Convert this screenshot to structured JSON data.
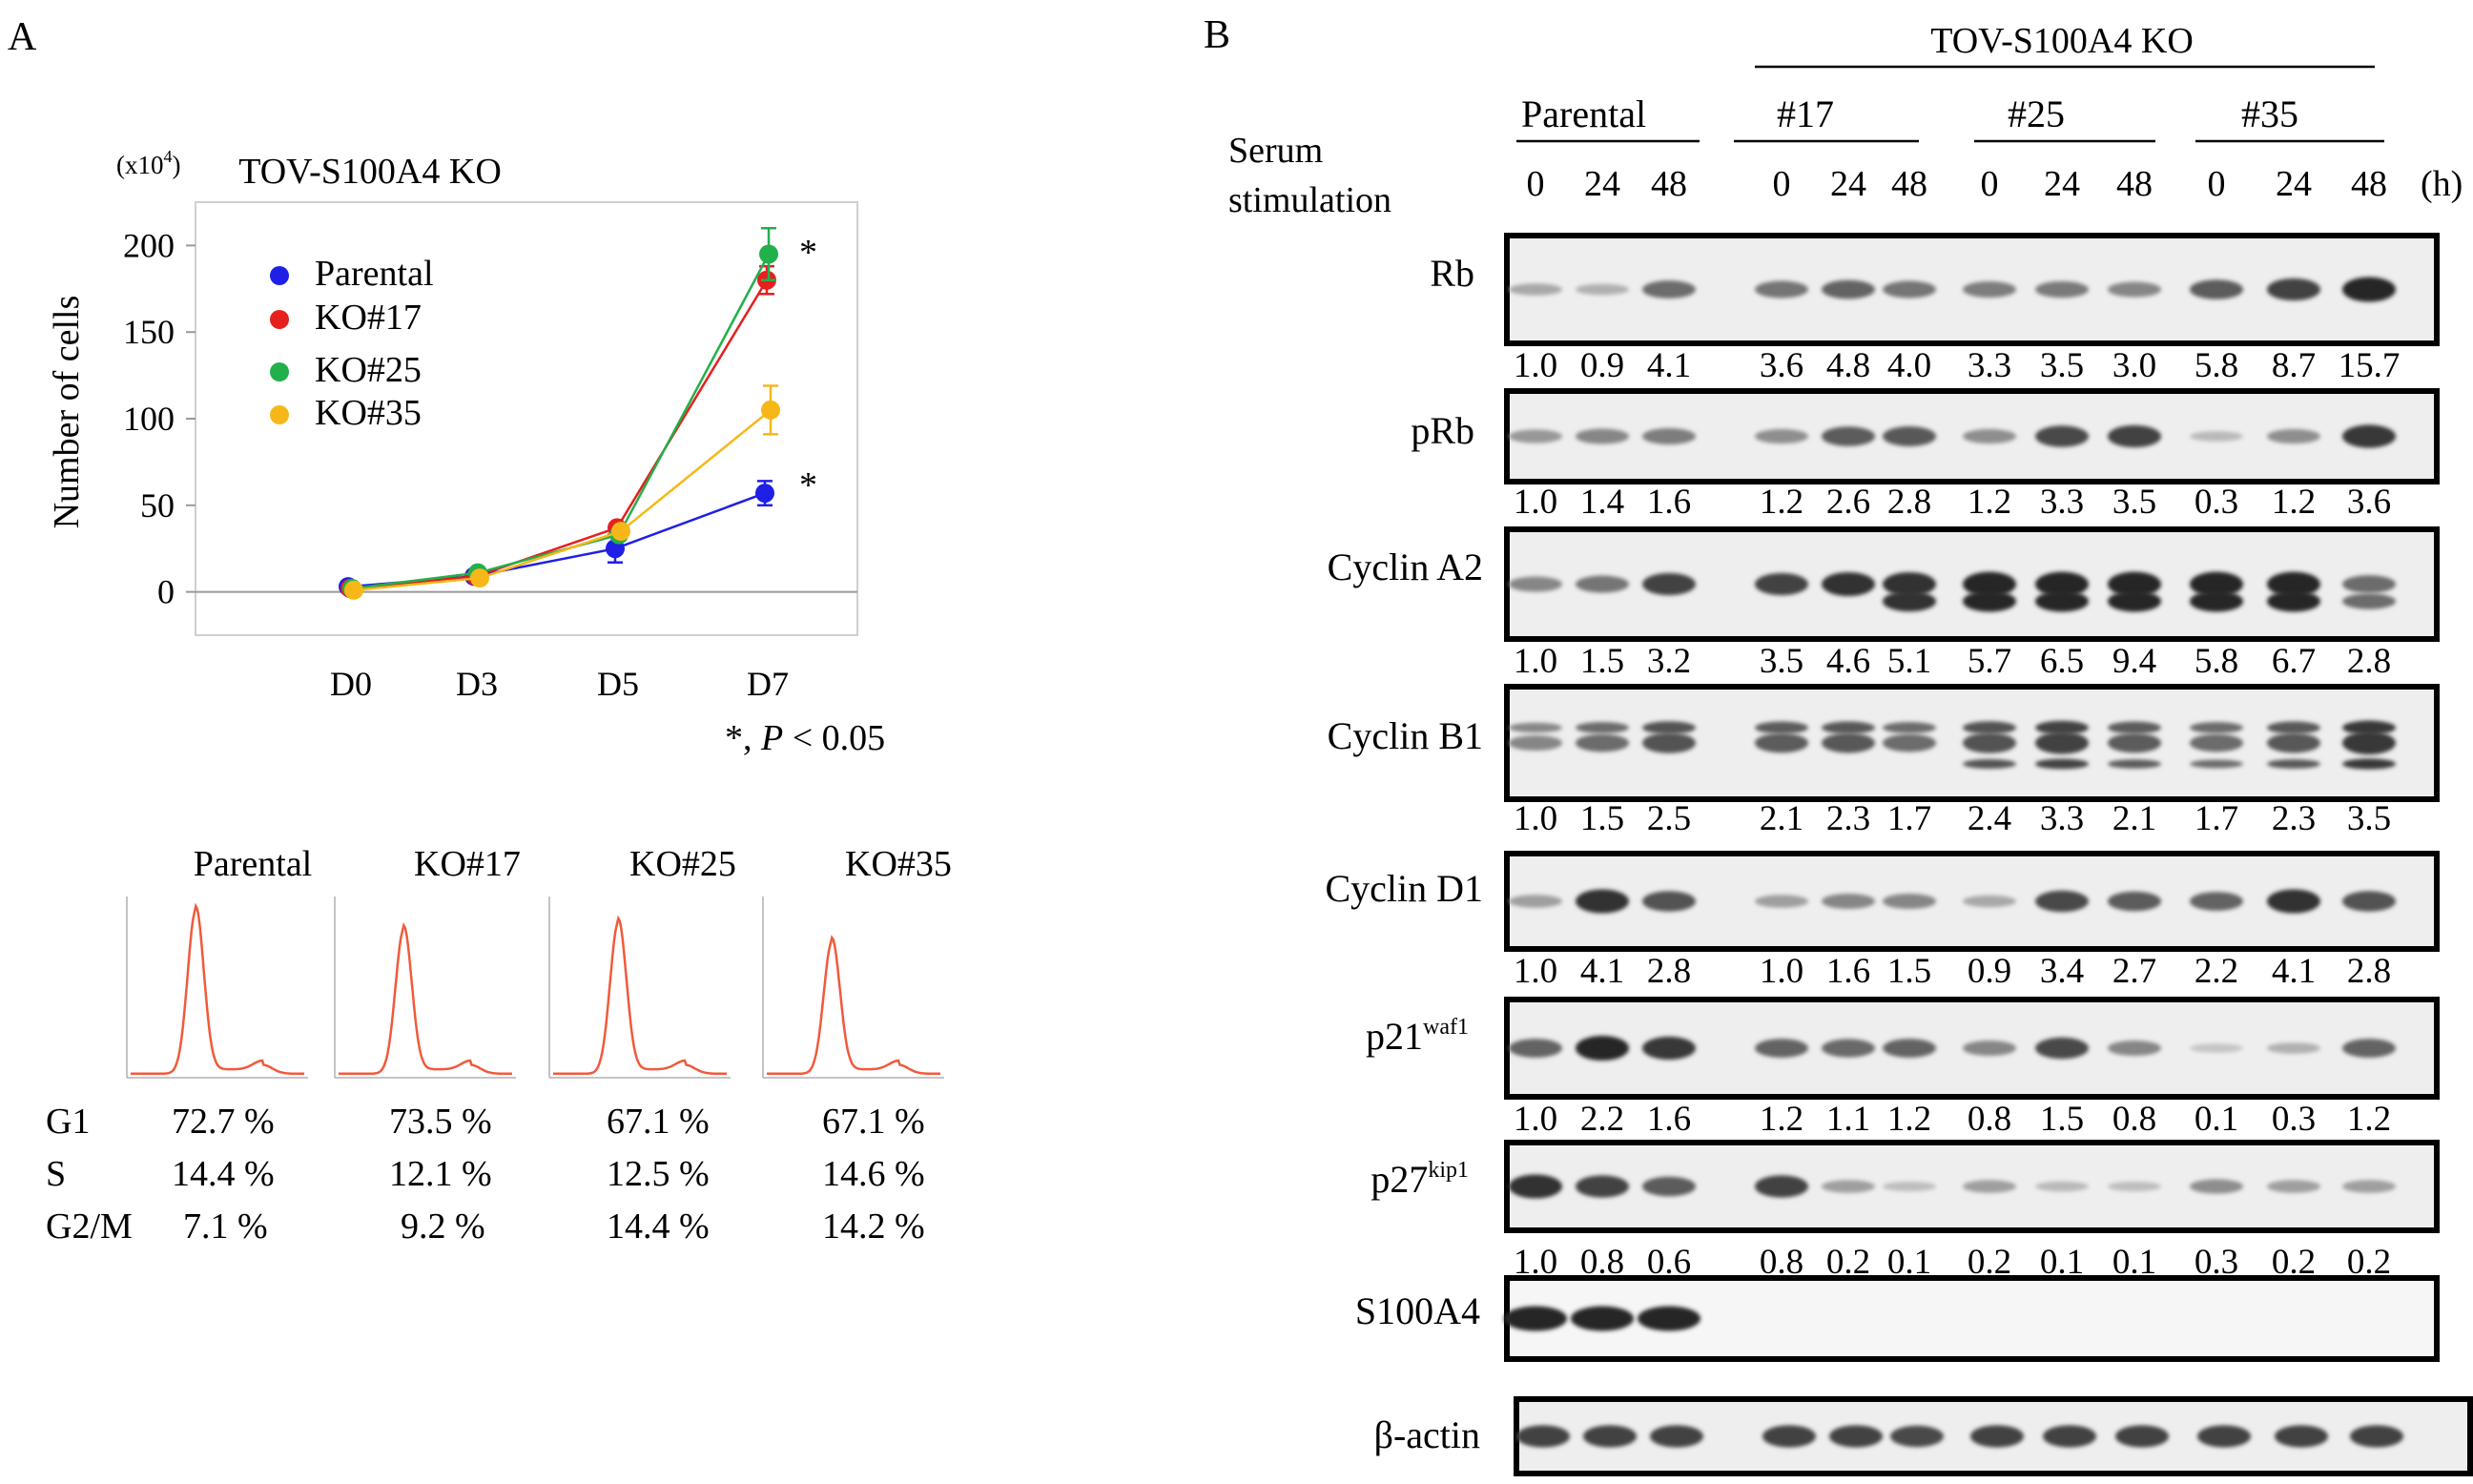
{
  "panel_a": {
    "label": "A",
    "chart_data": {
      "type": "line",
      "title": "TOV-S100A4 KO",
      "scale_label": "(x10",
      "scale_exp": "4",
      "scale_close": ")",
      "ylabel": "Number of cells",
      "xlabel": "",
      "categories": [
        "D0",
        "D3",
        "D5",
        "D7"
      ],
      "x": [
        0,
        3,
        5,
        7
      ],
      "ylim": [
        -25,
        225
      ],
      "yticks": [
        0,
        50,
        100,
        150,
        200
      ],
      "grid": false,
      "legend_position": "top-left",
      "series": [
        {
          "name": "Parental",
          "color": "#1f1fe6",
          "values": [
            3,
            9,
            25,
            57
          ],
          "errors": [
            0,
            0,
            8,
            7
          ]
        },
        {
          "name": "KO#17",
          "color": "#e61f1f",
          "values": [
            2,
            9,
            37,
            180
          ],
          "errors": [
            0,
            0,
            0,
            8
          ]
        },
        {
          "name": "KO#25",
          "color": "#22b04a",
          "values": [
            2,
            11,
            33,
            195
          ],
          "errors": [
            0,
            0,
            0,
            15
          ]
        },
        {
          "name": "KO#35",
          "color": "#f7b718",
          "values": [
            1,
            8,
            35,
            105
          ],
          "errors": [
            0,
            0,
            0,
            14
          ]
        }
      ],
      "significance": [
        {
          "x": 7,
          "y": 190,
          "label": "*"
        },
        {
          "x": 7,
          "y": 57,
          "label": "*"
        }
      ],
      "note_prefix": "*, ",
      "note_italic": "P",
      "note_suffix": " < 0.05"
    },
    "cell_cycle": {
      "curve_color": "#f05a3c",
      "phase_labels": [
        "G1",
        "S",
        "G2/M"
      ],
      "samples": [
        {
          "name": "Parental",
          "G1": "72.7 %",
          "S": "14.4 %",
          "G2M": "7.1 %",
          "peak": 0.93
        },
        {
          "name": "KO#17",
          "G1": "73.5 %",
          "S": "12.1 %",
          "G2M": "9.2 %",
          "peak": 0.82
        },
        {
          "name": "KO#25",
          "G1": "67.1 %",
          "S": "12.5 %",
          "G2M": "14.4 %",
          "peak": 0.86
        },
        {
          "name": "KO#35",
          "G1": "67.1 %",
          "S": "14.6 %",
          "G2M": "14.2 %",
          "peak": 0.75
        }
      ]
    }
  },
  "panel_b": {
    "label": "B",
    "ko_header": "TOV-S100A4 KO",
    "groups": [
      "Parental",
      "#17",
      "#25",
      "#35"
    ],
    "serum_label_line1": "Serum",
    "serum_label_line2": "stimulation",
    "timepoints": [
      "0",
      "24",
      "48",
      "0",
      "24",
      "48",
      "0",
      "24",
      "48",
      "0",
      "24",
      "48"
    ],
    "time_unit": "(h)",
    "blots": [
      {
        "name": "Rb",
        "sup": "",
        "quant": [
          "1.0",
          "0.9",
          "4.1",
          "3.6",
          "4.8",
          "4.0",
          "3.3",
          "3.5",
          "3.0",
          "5.8",
          "8.7",
          "15.7"
        ]
      },
      {
        "name": "pRb",
        "sup": "",
        "quant": [
          "1.0",
          "1.4",
          "1.6",
          "1.2",
          "2.6",
          "2.8",
          "1.2",
          "3.3",
          "3.5",
          "0.3",
          "1.2",
          "3.6"
        ]
      },
      {
        "name": "Cyclin A2",
        "sup": "",
        "quant": [
          "1.0",
          "1.5",
          "3.2",
          "3.5",
          "4.6",
          "5.1",
          "5.7",
          "6.5",
          "9.4",
          "5.8",
          "6.7",
          "2.8"
        ]
      },
      {
        "name": "Cyclin B1",
        "sup": "",
        "quant": [
          "1.0",
          "1.5",
          "2.5",
          "2.1",
          "2.3",
          "1.7",
          "2.4",
          "3.3",
          "2.1",
          "1.7",
          "2.3",
          "3.5"
        ]
      },
      {
        "name": "Cyclin D1",
        "sup": "",
        "quant": [
          "1.0",
          "4.1",
          "2.8",
          "1.0",
          "1.6",
          "1.5",
          "0.9",
          "3.4",
          "2.7",
          "2.2",
          "4.1",
          "2.8"
        ]
      },
      {
        "name": "p21",
        "sup": "waf1",
        "quant": [
          "1.0",
          "2.2",
          "1.6",
          "1.2",
          "1.1",
          "1.2",
          "0.8",
          "1.5",
          "0.8",
          "0.1",
          "0.3",
          "1.2"
        ]
      },
      {
        "name": "p27",
        "sup": "kip1",
        "quant": [
          "1.0",
          "0.8",
          "0.6",
          "0.8",
          "0.2",
          "0.1",
          "0.2",
          "0.1",
          "0.1",
          "0.3",
          "0.2",
          "0.2"
        ]
      },
      {
        "name": "S100A4",
        "sup": "",
        "quant": []
      },
      {
        "name": "β-actin",
        "sup": "",
        "quant": []
      }
    ]
  }
}
